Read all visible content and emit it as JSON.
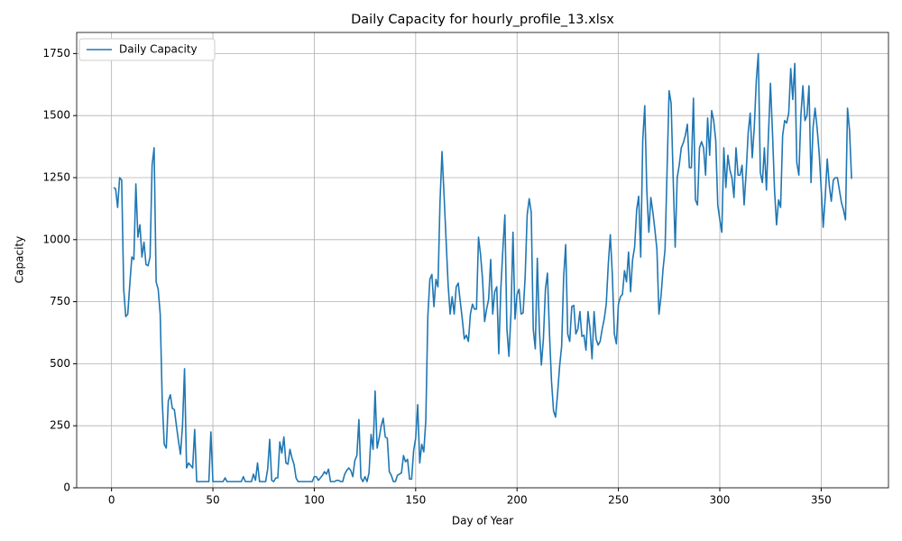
{
  "chart_data": {
    "type": "line",
    "title": "Daily Capacity for hourly_profile_13.xlsx",
    "x_label": "Day of Year",
    "y_label": "Capacity",
    "x": [
      1,
      2,
      3,
      4,
      5,
      6,
      7,
      8,
      9,
      10,
      11,
      12,
      13,
      14,
      15,
      16,
      17,
      18,
      19,
      20,
      21,
      22,
      23,
      24,
      25,
      26,
      27,
      28,
      29,
      30,
      31,
      32,
      33,
      34,
      35,
      36,
      37,
      38,
      39,
      40,
      41,
      42,
      43,
      44,
      45,
      46,
      47,
      48,
      49,
      50,
      51,
      52,
      53,
      54,
      55,
      56,
      57,
      58,
      59,
      60,
      61,
      62,
      63,
      64,
      65,
      66,
      67,
      68,
      69,
      70,
      71,
      72,
      73,
      74,
      75,
      76,
      77,
      78,
      79,
      80,
      81,
      82,
      83,
      84,
      85,
      86,
      87,
      88,
      89,
      90,
      91,
      92,
      93,
      94,
      95,
      96,
      97,
      98,
      99,
      100,
      101,
      102,
      103,
      104,
      105,
      106,
      107,
      108,
      109,
      110,
      111,
      112,
      113,
      114,
      115,
      116,
      117,
      118,
      119,
      120,
      121,
      122,
      123,
      124,
      125,
      126,
      127,
      128,
      129,
      130,
      131,
      132,
      133,
      134,
      135,
      136,
      137,
      138,
      139,
      140,
      141,
      142,
      143,
      144,
      145,
      146,
      147,
      148,
      149,
      150,
      151,
      152,
      153,
      154,
      155,
      156,
      157,
      158,
      159,
      160,
      161,
      162,
      163,
      164,
      165,
      166,
      167,
      168,
      169,
      170,
      171,
      172,
      173,
      174,
      175,
      176,
      177,
      178,
      179,
      180,
      181,
      182,
      183,
      184,
      185,
      186,
      187,
      188,
      189,
      190,
      191,
      192,
      193,
      194,
      195,
      196,
      197,
      198,
      199,
      200,
      201,
      202,
      203,
      204,
      205,
      206,
      207,
      208,
      209,
      210,
      211,
      212,
      213,
      214,
      215,
      216,
      217,
      218,
      219,
      220,
      221,
      222,
      223,
      224,
      225,
      226,
      227,
      228,
      229,
      230,
      231,
      232,
      233,
      234,
      235,
      236,
      237,
      238,
      239,
      240,
      241,
      242,
      243,
      244,
      245,
      246,
      247,
      248,
      249,
      250,
      251,
      252,
      253,
      254,
      255,
      256,
      257,
      258,
      259,
      260,
      261,
      262,
      263,
      264,
      265,
      266,
      267,
      268,
      269,
      270,
      271,
      272,
      273,
      274,
      275,
      276,
      277,
      278,
      279,
      280,
      281,
      282,
      283,
      284,
      285,
      286,
      287,
      288,
      289,
      290,
      291,
      292,
      293,
      294,
      295,
      296,
      297,
      298,
      299,
      300,
      301,
      302,
      303,
      304,
      305,
      306,
      307,
      308,
      309,
      310,
      311,
      312,
      313,
      314,
      315,
      316,
      317,
      318,
      319,
      320,
      321,
      322,
      323,
      324,
      325,
      326,
      327,
      328,
      329,
      330,
      331,
      332,
      333,
      334,
      335,
      336,
      337,
      338,
      339,
      340,
      341,
      342,
      343,
      344,
      345,
      346,
      347,
      348,
      349,
      350,
      351,
      352,
      353,
      354,
      355,
      356,
      357,
      358,
      359,
      360,
      361,
      362,
      363,
      364,
      365
    ],
    "series": [
      {
        "name": "Daily Capacity",
        "color": "#1f77b4",
        "values": [
          1210,
          1205,
          1130,
          1250,
          1240,
          800,
          690,
          700,
          820,
          930,
          920,
          1225,
          1010,
          1060,
          930,
          990,
          900,
          895,
          930,
          1300,
          1370,
          830,
          800,
          700,
          350,
          175,
          160,
          350,
          375,
          320,
          315,
          250,
          190,
          135,
          250,
          480,
          80,
          100,
          90,
          80,
          235,
          25,
          25,
          25,
          25,
          25,
          25,
          25,
          225,
          25,
          25,
          25,
          25,
          25,
          25,
          40,
          25,
          25,
          25,
          25,
          25,
          25,
          25,
          25,
          45,
          25,
          25,
          25,
          25,
          55,
          30,
          100,
          25,
          25,
          25,
          25,
          75,
          195,
          30,
          25,
          40,
          40,
          185,
          140,
          205,
          100,
          95,
          155,
          120,
          95,
          40,
          25,
          25,
          25,
          25,
          25,
          25,
          25,
          25,
          45,
          45,
          30,
          40,
          50,
          65,
          55,
          75,
          25,
          25,
          25,
          30,
          30,
          25,
          25,
          55,
          70,
          80,
          70,
          45,
          110,
          130,
          275,
          40,
          25,
          45,
          25,
          60,
          215,
          155,
          390,
          160,
          200,
          250,
          280,
          205,
          200,
          65,
          50,
          25,
          25,
          50,
          55,
          60,
          130,
          105,
          115,
          35,
          35,
          150,
          200,
          335,
          100,
          175,
          145,
          270,
          690,
          840,
          860,
          730,
          840,
          810,
          1150,
          1355,
          1180,
          1000,
          820,
          700,
          770,
          700,
          810,
          825,
          750,
          680,
          600,
          615,
          590,
          700,
          740,
          720,
          720,
          1010,
          940,
          840,
          670,
          720,
          760,
          920,
          700,
          790,
          810,
          540,
          800,
          960,
          1100,
          640,
          530,
          700,
          1030,
          680,
          780,
          800,
          700,
          705,
          850,
          1100,
          1165,
          1110,
          640,
          560,
          925,
          640,
          495,
          600,
          800,
          865,
          620,
          430,
          310,
          285,
          380,
          490,
          570,
          850,
          980,
          620,
          590,
          730,
          735,
          620,
          640,
          710,
          610,
          615,
          555,
          710,
          640,
          520,
          710,
          600,
          575,
          590,
          640,
          680,
          740,
          900,
          1020,
          860,
          620,
          580,
          740,
          770,
          780,
          875,
          830,
          950,
          790,
          920,
          970,
          1120,
          1175,
          930,
          1400,
          1540,
          1200,
          1030,
          1170,
          1110,
          1040,
          960,
          700,
          770,
          880,
          960,
          1280,
          1600,
          1550,
          1250,
          970,
          1250,
          1300,
          1370,
          1390,
          1420,
          1465,
          1290,
          1290,
          1570,
          1160,
          1140,
          1370,
          1395,
          1370,
          1260,
          1490,
          1340,
          1520,
          1480,
          1400,
          1140,
          1080,
          1030,
          1370,
          1210,
          1340,
          1280,
          1250,
          1170,
          1370,
          1260,
          1260,
          1300,
          1140,
          1270,
          1430,
          1510,
          1330,
          1450,
          1640,
          1750,
          1270,
          1230,
          1370,
          1200,
          1420,
          1630,
          1430,
          1200,
          1060,
          1160,
          1130,
          1420,
          1480,
          1470,
          1510,
          1690,
          1565,
          1710,
          1310,
          1260,
          1500,
          1620,
          1480,
          1500,
          1620,
          1230,
          1450,
          1530,
          1450,
          1350,
          1210,
          1050,
          1170,
          1325,
          1220,
          1155,
          1240,
          1250,
          1250,
          1200,
          1150,
          1120,
          1080,
          1530,
          1440,
          1245
        ]
      }
    ],
    "xlim": [
      -17.2,
      383.2
    ],
    "xticks": [
      0,
      50,
      100,
      150,
      200,
      250,
      300,
      350
    ],
    "ylim": [
      0,
      1835
    ],
    "yticks": [
      0,
      250,
      500,
      750,
      1000,
      1250,
      1500,
      1750
    ],
    "grid": true,
    "legend": "upper-left"
  }
}
